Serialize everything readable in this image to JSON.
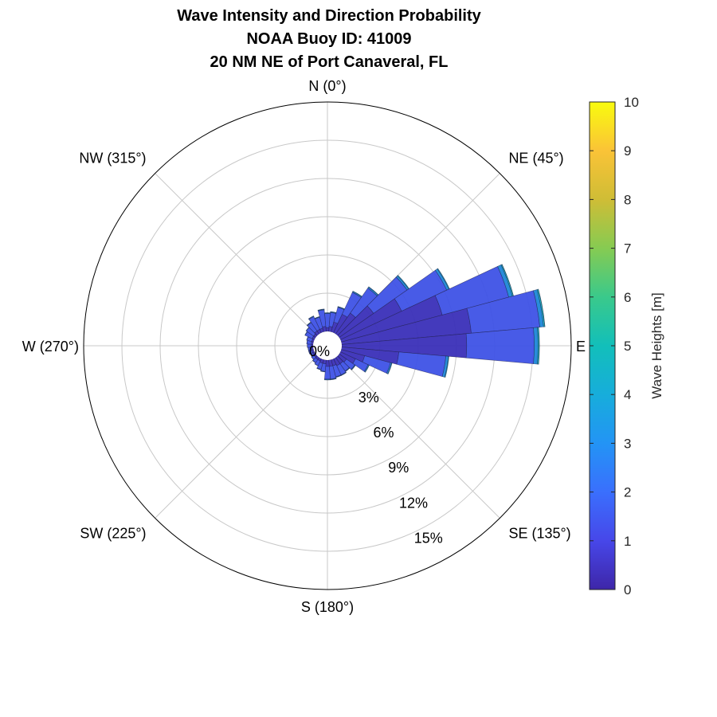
{
  "chart_data": {
    "type": "polar-stacked-bar",
    "title": [
      "Wave Intensity and Direction Probability",
      "NOAA Buoy ID: 41009",
      "20 NM NE of Port Canaveral, FL"
    ],
    "angle_labels": [
      "N (0°)",
      "NE (45°)",
      "E",
      "SE (135°)",
      "S (180°)",
      "SW (225°)",
      "W (270°)",
      "NW (315°)"
    ],
    "radial_ticks": [
      0,
      3,
      6,
      9,
      12,
      15
    ],
    "radial_tick_labels": [
      "0%",
      "3%",
      "6%",
      "9%",
      "12%",
      "15%"
    ],
    "rlim": [
      0,
      18
    ],
    "sector_width_deg": 10,
    "wave_height_bins": [
      "0-1",
      "1-2",
      "2-3",
      "3-4",
      "4-5"
    ],
    "sectors": [
      {
        "dir": 0,
        "values": [
          0.3,
          1.1,
          0.05,
          0.02,
          0.0
        ]
      },
      {
        "dir": 10,
        "values": [
          0.4,
          1.1,
          0.05,
          0.02,
          0.0
        ]
      },
      {
        "dir": 20,
        "values": [
          0.8,
          1.2,
          0.05,
          0.02,
          0.0
        ]
      },
      {
        "dir": 30,
        "values": [
          1.6,
          1.9,
          0.08,
          0.03,
          0.0
        ]
      },
      {
        "dir": 40,
        "values": [
          2.0,
          2.4,
          0.1,
          0.03,
          0.0
        ]
      },
      {
        "dir": 50,
        "values": [
          3.3,
          3.2,
          0.15,
          0.05,
          0.0
        ]
      },
      {
        "dir": 60,
        "values": [
          5.3,
          3.9,
          0.2,
          0.05,
          0.0
        ]
      },
      {
        "dir": 70,
        "values": [
          8.2,
          5.4,
          0.3,
          0.08,
          0.01
        ]
      },
      {
        "dir": 80,
        "values": [
          10.2,
          5.4,
          0.3,
          0.1,
          0.01
        ]
      },
      {
        "dir": 90,
        "values": [
          9.8,
          5.3,
          0.3,
          0.1,
          0.01
        ]
      },
      {
        "dir": 100,
        "values": [
          4.5,
          3.7,
          0.2,
          0.05,
          0.0
        ]
      },
      {
        "dir": 110,
        "values": [
          1.9,
          2.1,
          0.1,
          0.03,
          0.0
        ]
      },
      {
        "dir": 120,
        "values": [
          1.3,
          1.1,
          0.08,
          0.02,
          0.0
        ]
      },
      {
        "dir": 130,
        "values": [
          0.7,
          0.8,
          0.05,
          0.01,
          0.0
        ]
      },
      {
        "dir": 140,
        "values": [
          0.6,
          0.7,
          0.04,
          0.01,
          0.0
        ]
      },
      {
        "dir": 150,
        "values": [
          0.6,
          0.8,
          0.04,
          0.01,
          0.0
        ]
      },
      {
        "dir": 160,
        "values": [
          0.5,
          0.9,
          0.04,
          0.01,
          0.0
        ]
      },
      {
        "dir": 170,
        "values": [
          0.5,
          1.0,
          0.05,
          0.01,
          0.0
        ]
      },
      {
        "dir": 180,
        "values": [
          0.5,
          1.0,
          0.05,
          0.01,
          0.0
        ]
      },
      {
        "dir": 190,
        "values": [
          0.3,
          0.6,
          0.03,
          0.01,
          0.0
        ]
      },
      {
        "dir": 200,
        "values": [
          0.3,
          0.5,
          0.03,
          0.01,
          0.0
        ]
      },
      {
        "dir": 210,
        "values": [
          0.2,
          0.4,
          0.02,
          0.0,
          0.0
        ]
      },
      {
        "dir": 220,
        "values": [
          0.2,
          0.3,
          0.02,
          0.0,
          0.0
        ]
      },
      {
        "dir": 230,
        "values": [
          0.15,
          0.25,
          0.01,
          0.0,
          0.0
        ]
      },
      {
        "dir": 240,
        "values": [
          0.15,
          0.2,
          0.01,
          0.0,
          0.0
        ]
      },
      {
        "dir": 250,
        "values": [
          0.15,
          0.25,
          0.01,
          0.0,
          0.0
        ]
      },
      {
        "dir": 260,
        "values": [
          0.15,
          0.25,
          0.01,
          0.0,
          0.0
        ]
      },
      {
        "dir": 270,
        "values": [
          0.15,
          0.3,
          0.01,
          0.0,
          0.0
        ]
      },
      {
        "dir": 280,
        "values": [
          0.15,
          0.35,
          0.01,
          0.0,
          0.0
        ]
      },
      {
        "dir": 290,
        "values": [
          0.15,
          0.4,
          0.02,
          0.0,
          0.0
        ]
      },
      {
        "dir": 300,
        "values": [
          0.2,
          0.6,
          0.03,
          0.0,
          0.0
        ]
      },
      {
        "dir": 310,
        "values": [
          0.2,
          0.7,
          0.03,
          0.0,
          0.0
        ]
      },
      {
        "dir": 320,
        "values": [
          0.3,
          0.8,
          0.04,
          0.01,
          0.0
        ]
      },
      {
        "dir": 330,
        "values": [
          0.3,
          1.1,
          0.05,
          0.01,
          0.0
        ]
      },
      {
        "dir": 340,
        "values": [
          0.3,
          0.9,
          0.04,
          0.01,
          0.0
        ]
      },
      {
        "dir": 350,
        "values": [
          0.4,
          1.3,
          0.05,
          0.02,
          0.0
        ]
      }
    ],
    "colorbar": {
      "label": "Wave Heights [m]",
      "ticks": [
        0,
        1,
        2,
        3,
        4,
        5,
        6,
        7,
        8,
        9,
        10
      ],
      "range": [
        0,
        10
      ],
      "colormap": "parula"
    },
    "bin_colors": [
      "#3a2fb8",
      "#3e52e6",
      "#1c87d8",
      "#15b3c0",
      "#3bbd9d"
    ],
    "grid": true,
    "direction": "clockwise-from-north"
  }
}
